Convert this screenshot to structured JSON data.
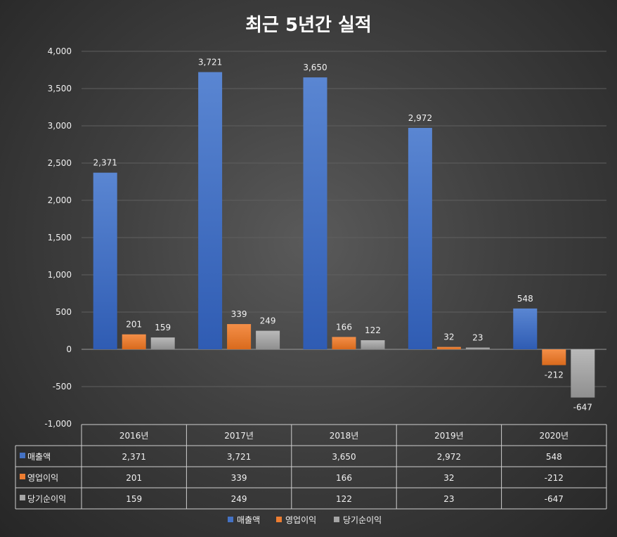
{
  "chart_data": {
    "type": "bar",
    "title": "최근 5년간 실적",
    "categories": [
      "2016년",
      "2017년",
      "2018년",
      "2019년",
      "2020년"
    ],
    "series": [
      {
        "name": "매출액",
        "values": [
          2371,
          3721,
          3650,
          2972,
          548
        ],
        "color": "#4472C4"
      },
      {
        "name": "영업이익",
        "values": [
          201,
          339,
          166,
          32,
          -212
        ],
        "color": "#ED7D31"
      },
      {
        "name": "당기순이익",
        "values": [
          159,
          249,
          122,
          23,
          -647
        ],
        "color": "#A5A5A5"
      }
    ],
    "data_labels": [
      [
        "2,371",
        "3,721",
        "3,650",
        "2,972",
        "548"
      ],
      [
        "201",
        "339",
        "166",
        "32",
        "-212"
      ],
      [
        "159",
        "249",
        "122",
        "23",
        "-647"
      ]
    ],
    "yticks": [
      4000,
      3500,
      3000,
      2500,
      2000,
      1500,
      1000,
      500,
      0,
      -500,
      -1000
    ],
    "ytick_labels": [
      "4,000",
      "3,500",
      "3,000",
      "2,500",
      "2,000",
      "1,500",
      "1,000",
      "500",
      "0",
      "-500",
      "-1,000"
    ],
    "ylim": [
      -1000,
      4000
    ],
    "grid": true,
    "legend_position": "bottom",
    "data_table": true
  }
}
